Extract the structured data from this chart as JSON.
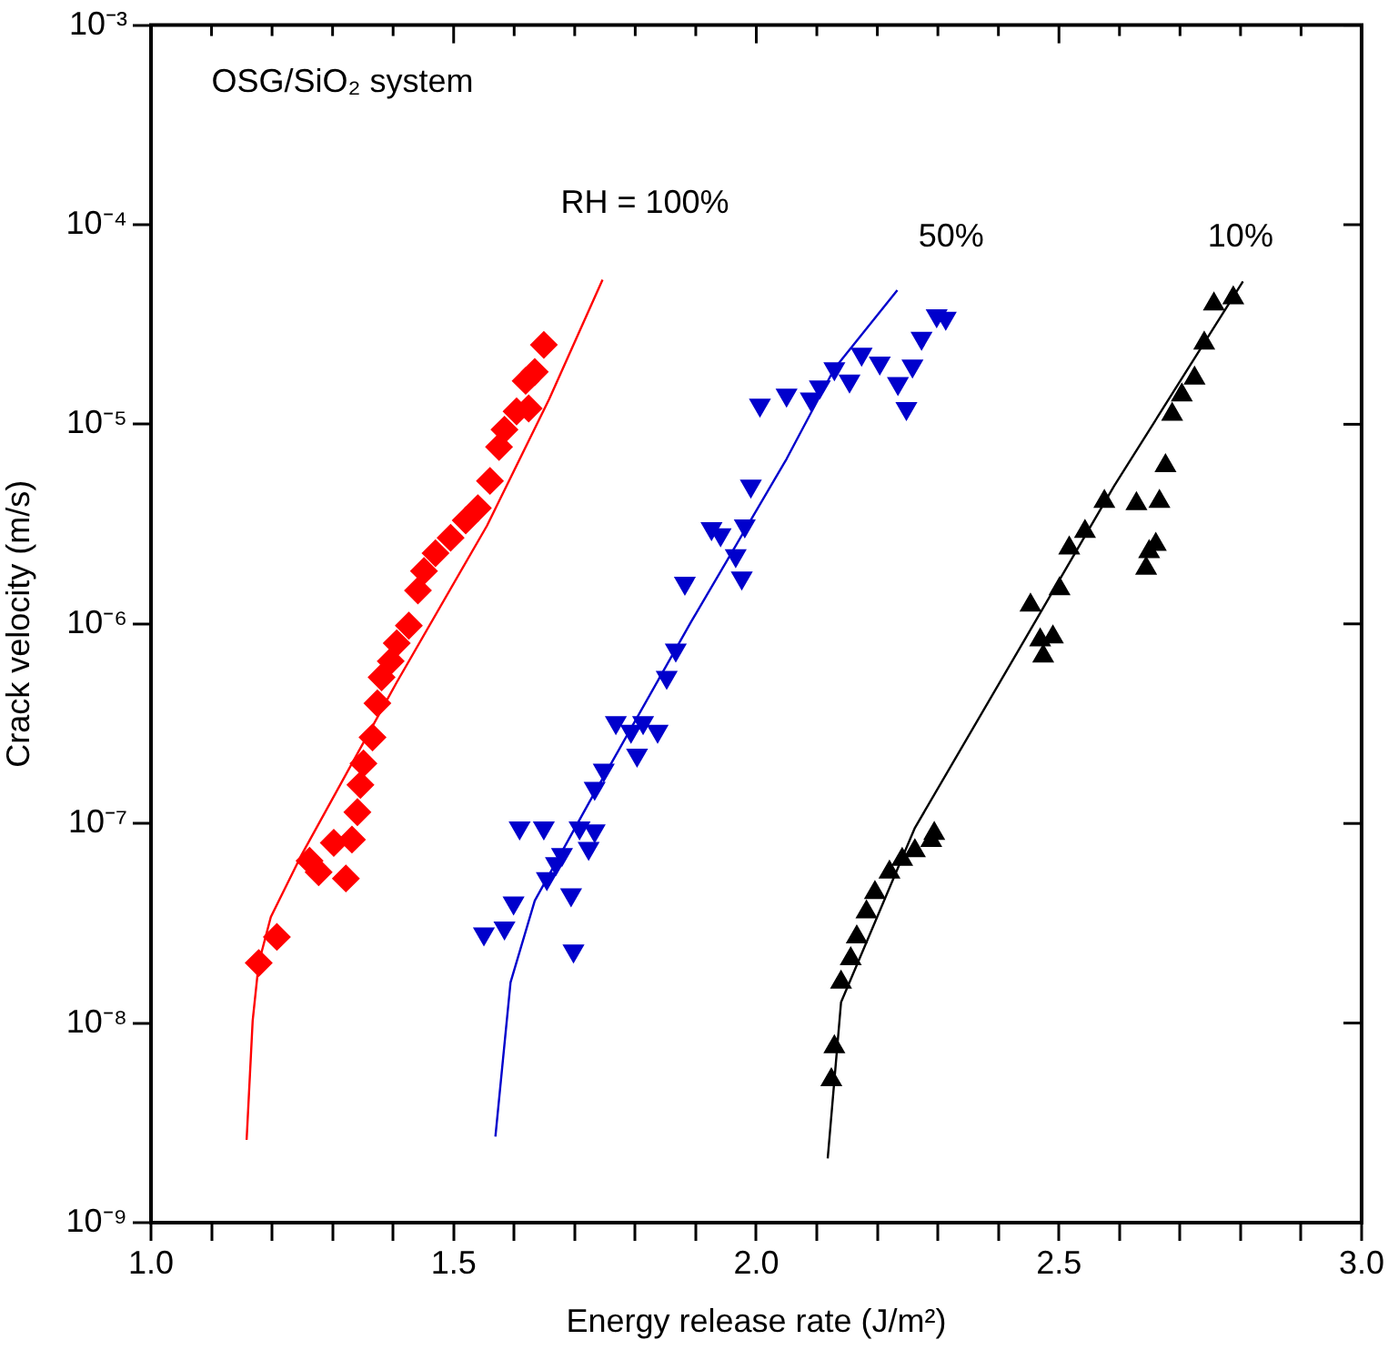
{
  "chart_data": {
    "type": "scatter",
    "xlabel": "Energy release rate (J/m²)",
    "ylabel": "Crack velocity (m/s)",
    "log": "y",
    "grid": false,
    "legend": false,
    "xlim": [
      1.0,
      3.0
    ],
    "xticks": [
      {
        "value": 1.0,
        "label": "1.0"
      },
      {
        "value": 1.1,
        "label": null
      },
      {
        "value": 1.2,
        "label": null
      },
      {
        "value": 1.3,
        "label": null
      },
      {
        "value": 1.4,
        "label": null
      },
      {
        "value": 1.5,
        "label": "1.5"
      },
      {
        "value": 1.6,
        "label": null
      },
      {
        "value": 1.7,
        "label": null
      },
      {
        "value": 1.8,
        "label": null
      },
      {
        "value": 1.9,
        "label": null
      },
      {
        "value": 2.0,
        "label": "2.0"
      },
      {
        "value": 2.1,
        "label": null
      },
      {
        "value": 2.2,
        "label": null
      },
      {
        "value": 2.3,
        "label": null
      },
      {
        "value": 2.4,
        "label": null
      },
      {
        "value": 2.5,
        "label": "2.5"
      },
      {
        "value": 2.6,
        "label": null
      },
      {
        "value": 2.7,
        "label": null
      },
      {
        "value": 2.8,
        "label": null
      },
      {
        "value": 2.9,
        "label": null
      },
      {
        "value": 3.0,
        "label": "3.0"
      }
    ],
    "ylim": [
      1e-09,
      0.001
    ],
    "yticks": [
      {
        "value": 1e-09,
        "label": "10⁻⁹"
      },
      {
        "value": 1e-08,
        "label": "10⁻⁸"
      },
      {
        "value": 1e-07,
        "label": "10⁻⁷"
      },
      {
        "value": 1e-06,
        "label": "10⁻⁶"
      },
      {
        "value": 1e-05,
        "label": "10⁻⁵"
      },
      {
        "value": 0.0001,
        "label": "10⁻⁴"
      },
      {
        "value": 0.001,
        "label": "10⁻³"
      }
    ],
    "annotations": [
      "OSG/SiO₂ system",
      "RH = 100%",
      "50%",
      "10%"
    ],
    "series": [
      {
        "marker": "diamond",
        "color": "#ff0000",
        "x": [
          1.178,
          1.208,
          1.262,
          1.277,
          1.302,
          1.322,
          1.332,
          1.341,
          1.346,
          1.351,
          1.366,
          1.374,
          1.381,
          1.396,
          1.406,
          1.426,
          1.441,
          1.451,
          1.47,
          1.495,
          1.52,
          1.54,
          1.56,
          1.575,
          1.584,
          1.604,
          1.624,
          1.619,
          1.634,
          1.649
        ],
        "values": [
          2e-08,
          2.7e-08,
          6.5e-08,
          5.7e-08,
          8e-08,
          5.3e-08,
          8.3e-08,
          1.14e-07,
          1.56e-07,
          2e-07,
          2.7e-07,
          4e-07,
          5.4e-07,
          6.5e-07,
          8e-07,
          9.8e-07,
          1.47e-06,
          1.84e-06,
          2.26e-06,
          2.7e-06,
          3.3e-06,
          3.8e-06,
          5.2e-06,
          7.7e-06,
          9.4e-06,
          1.16e-05,
          1.2e-05,
          1.65e-05,
          1.83e-05,
          2.5e-05
        ]
      },
      {
        "type": "line",
        "marker": "none",
        "color": "#ff0000",
        "x": [
          1.158,
          1.168,
          1.178,
          1.198,
          1.247,
          1.406,
          1.555,
          1.658,
          1.746
        ],
        "values": [
          2.6e-09,
          1.03e-08,
          2e-08,
          3.4e-08,
          6.8e-08,
          5.1e-07,
          3.1e-06,
          1.34e-05,
          5.3e-05
        ]
      },
      {
        "marker": "triangle-down",
        "color": "#0000cc",
        "x": [
          1.55,
          1.584,
          1.599,
          1.654,
          1.669,
          1.679,
          1.694,
          1.698,
          1.609,
          1.649,
          1.708,
          1.723,
          1.733,
          1.733,
          1.748,
          1.768,
          1.793,
          1.803,
          1.813,
          1.837,
          1.852,
          1.867,
          1.882,
          1.926,
          1.941,
          1.966,
          1.976,
          1.981,
          1.991,
          2.006,
          2.05,
          2.09,
          2.105,
          2.129,
          2.154,
          2.174,
          2.204,
          2.234,
          2.248,
          2.258,
          2.273,
          2.298,
          2.313
        ],
        "values": [
          2.8e-08,
          3e-08,
          4e-08,
          5.3e-08,
          6.3e-08,
          7e-08,
          4.4e-08,
          2.3e-08,
          9.5e-08,
          9.5e-08,
          9.5e-08,
          7.5e-08,
          9.2e-08,
          1.5e-07,
          1.85e-07,
          3.2e-07,
          2.9e-07,
          2.2e-07,
          3.2e-07,
          2.9e-07,
          5.4e-07,
          7.4e-07,
          1.6e-06,
          3e-06,
          2.8e-06,
          2.2e-06,
          1.7e-06,
          3.1e-06,
          4.9e-06,
          1.25e-05,
          1.4e-05,
          1.34e-05,
          1.54e-05,
          1.9e-05,
          1.65e-05,
          2.25e-05,
          2.03e-05,
          1.6e-05,
          1.2e-05,
          1.96e-05,
          2.7e-05,
          3.5e-05,
          3.4e-05
        ]
      },
      {
        "type": "line",
        "marker": "none",
        "color": "#0000cc",
        "x": [
          1.569,
          1.594,
          1.634,
          1.723,
          1.892,
          2.05,
          2.129,
          2.233
        ],
        "values": [
          2.7e-09,
          1.6e-08,
          4.1e-08,
          1.26e-07,
          1.02e-06,
          6.7e-06,
          1.9e-05,
          4.7e-05
        ]
      },
      {
        "marker": "triangle",
        "color": "#000000",
        "x": [
          2.124,
          2.129,
          2.14,
          2.156,
          2.166,
          2.182,
          2.196,
          2.22,
          2.241,
          2.262,
          2.289,
          2.294,
          2.453,
          2.469,
          2.474,
          2.49,
          2.501,
          2.517,
          2.543,
          2.575,
          2.628,
          2.644,
          2.649,
          2.66,
          2.666,
          2.676,
          2.687,
          2.703,
          2.724,
          2.74,
          2.756,
          2.788
        ],
        "values": [
          5.2e-09,
          7.6e-09,
          1.6e-08,
          2.1e-08,
          2.7e-08,
          3.6e-08,
          4.5e-08,
          5.7e-08,
          6.6e-08,
          7.3e-08,
          8.2e-08,
          8.9e-08,
          1.24e-06,
          8.3e-07,
          6.9e-07,
          8.6e-07,
          1.5e-06,
          2.4e-06,
          2.9e-06,
          4.1e-06,
          4e-06,
          1.9e-06,
          2.3e-06,
          2.5e-06,
          4.1e-06,
          6.2e-06,
          1.12e-05,
          1.4e-05,
          1.7e-05,
          2.55e-05,
          4e-05,
          4.3e-05
        ]
      },
      {
        "type": "line",
        "marker": "none",
        "color": "#000000",
        "x": [
          2.118,
          2.14,
          2.262,
          2.443,
          2.591,
          2.804
        ],
        "values": [
          2.1e-09,
          1.27e-08,
          9.5e-08,
          8.3e-07,
          4.9e-06,
          5.2e-05
        ]
      }
    ]
  }
}
